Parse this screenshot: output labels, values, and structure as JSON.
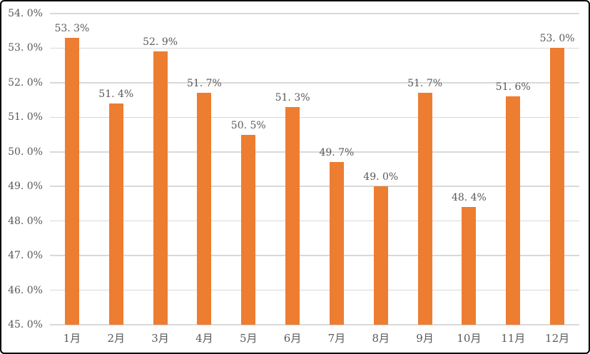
{
  "chart_data": {
    "type": "bar",
    "title": "",
    "xlabel": "",
    "ylabel": "",
    "categories": [
      "1月",
      "2月",
      "3月",
      "4月",
      "5月",
      "6月",
      "7月",
      "8月",
      "9月",
      "10月",
      "11月",
      "12月"
    ],
    "values": [
      53.3,
      51.4,
      52.9,
      51.7,
      50.5,
      51.3,
      49.7,
      49.0,
      51.7,
      48.4,
      51.6,
      53.0
    ],
    "data_labels": [
      "53. 3%",
      "51. 4%",
      "52. 9%",
      "51. 7%",
      "50. 5%",
      "51. 3%",
      "49. 7%",
      "49. 0%",
      "51. 7%",
      "48. 4%",
      "51. 6%",
      "53. 0%"
    ],
    "y_tick_values": [
      54,
      53,
      52,
      51,
      50,
      49,
      48,
      47,
      46,
      45
    ],
    "y_tick_labels": [
      "54. 0%",
      "53. 0%",
      "52. 0%",
      "51. 0%",
      "50. 0%",
      "49. 0%",
      "48. 0%",
      "47. 0%",
      "46. 0%",
      "45. 0%"
    ],
    "ylim": [
      45,
      54
    ],
    "grid": true,
    "legend": false,
    "colors": {
      "bar": "#ED7D31",
      "text": "#595959",
      "gridline": "#D9D9D9",
      "background": "#FFFFFF",
      "frame_border": "#000000"
    }
  }
}
